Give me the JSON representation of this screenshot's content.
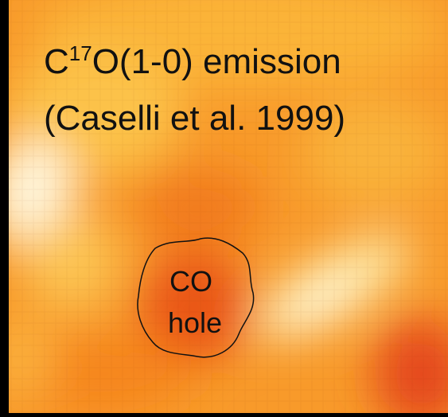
{
  "title": {
    "prefix": "C",
    "superscript": "17",
    "suffix": "O(1-0) emission"
  },
  "subtitle": "(Caselli et al. 1999)",
  "label": [
    "CO",
    "hole"
  ]
}
